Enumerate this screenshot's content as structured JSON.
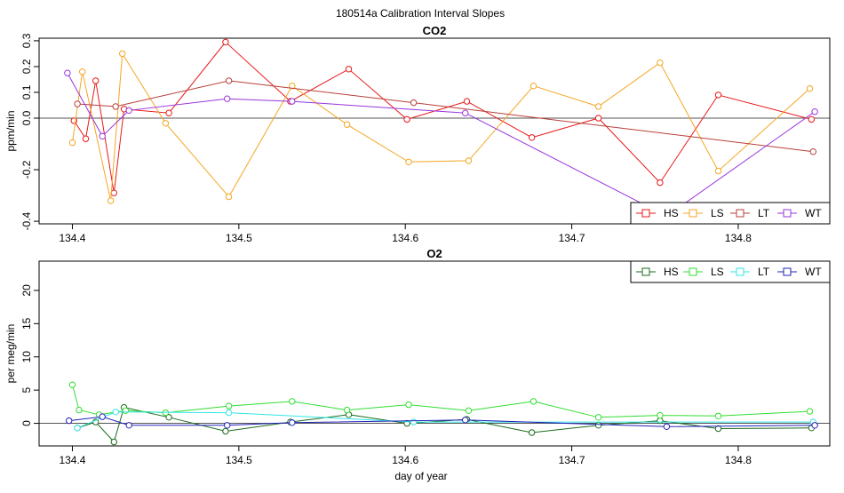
{
  "figure_title": "180514a   Calibration Interval Slopes",
  "x_axis_label": "day of year",
  "chart_data": [
    {
      "type": "line",
      "title": "CO2",
      "xlabel": "",
      "ylabel": "ppm/min",
      "xlim": [
        134.38,
        134.855
      ],
      "ylim": [
        -0.41,
        0.31
      ],
      "xticks": [
        134.4,
        134.5,
        134.6,
        134.7,
        134.8
      ],
      "xtick_labels": [
        "134.4",
        "134.5",
        "134.6",
        "134.7",
        "134.8"
      ],
      "yticks": [
        -0.4,
        -0.2,
        0.0,
        0.1,
        0.2,
        0.3
      ],
      "ytick_labels": [
        "-0.4",
        "-0.2",
        "0.0",
        "0.1",
        "0.2",
        "0.3"
      ],
      "reference_line_y": 0,
      "legend_position": "bottom-right",
      "legend_marker": "square",
      "series": [
        {
          "name": "HS",
          "color": "#e8191a",
          "x": [
            134.401,
            134.408,
            134.414,
            134.425,
            134.431,
            134.458,
            134.492,
            134.531,
            134.566,
            134.601,
            134.637,
            134.676,
            134.716,
            134.753,
            134.788,
            134.844
          ],
          "y": [
            -0.01,
            -0.08,
            0.145,
            -0.29,
            0.035,
            0.02,
            0.295,
            0.065,
            0.19,
            -0.005,
            0.065,
            -0.075,
            0.0,
            -0.25,
            0.09,
            -0.005
          ]
        },
        {
          "name": "LS",
          "color": "#f5a623",
          "x": [
            134.4,
            134.406,
            134.423,
            134.43,
            134.456,
            134.494,
            134.532,
            134.565,
            134.602,
            134.638,
            134.677,
            134.716,
            134.753,
            134.788,
            134.843
          ],
          "y": [
            -0.095,
            0.18,
            -0.32,
            0.25,
            -0.02,
            -0.305,
            0.125,
            -0.025,
            -0.17,
            -0.165,
            0.125,
            0.045,
            0.215,
            -0.205,
            0.115
          ]
        },
        {
          "name": "LT",
          "color": "#b8403a",
          "x": [
            134.403,
            134.426,
            134.494,
            134.605,
            134.845
          ],
          "y": [
            0.055,
            0.045,
            0.145,
            0.06,
            -0.13
          ]
        },
        {
          "name": "WT",
          "color": "#9933dd",
          "x": [
            134.397,
            134.418,
            134.434,
            134.493,
            134.532,
            134.636,
            134.757,
            134.846
          ],
          "y": [
            0.175,
            -0.07,
            0.03,
            0.075,
            0.065,
            0.02,
            -0.38,
            0.025
          ]
        }
      ]
    },
    {
      "type": "line",
      "title": "O2",
      "xlabel": "day of year",
      "ylabel": "per meg/min",
      "xlim": [
        134.38,
        134.855
      ],
      "ylim": [
        -3.4,
        24.4
      ],
      "xticks": [
        134.4,
        134.5,
        134.6,
        134.7,
        134.8
      ],
      "xtick_labels": [
        "134.4",
        "134.5",
        "134.6",
        "134.7",
        "134.8"
      ],
      "yticks": [
        0,
        5,
        10,
        15,
        20
      ],
      "ytick_labels": [
        "0",
        "5",
        "10",
        "15",
        "20"
      ],
      "reference_line_y": 0,
      "legend_position": "top-right",
      "legend_marker": "square",
      "series": [
        {
          "name": "HS",
          "color": "#1a6b1a",
          "x": [
            134.403,
            134.414,
            134.425,
            134.431,
            134.458,
            134.492,
            134.531,
            134.566,
            134.601,
            134.637,
            134.676,
            134.716,
            134.753,
            134.788,
            134.844
          ],
          "y": [
            -0.7,
            0.2,
            -2.8,
            2.4,
            0.9,
            -1.2,
            0.2,
            1.3,
            0.0,
            0.6,
            -1.4,
            -0.3,
            0.4,
            -0.8,
            -0.7
          ]
        },
        {
          "name": "LS",
          "color": "#33dd33",
          "x": [
            134.4,
            134.404,
            134.416,
            134.432,
            134.456,
            134.494,
            134.532,
            134.565,
            134.602,
            134.638,
            134.677,
            134.716,
            134.753,
            134.788,
            134.843
          ],
          "y": [
            5.8,
            2.0,
            1.3,
            1.9,
            1.6,
            2.6,
            3.3,
            2.0,
            2.8,
            1.9,
            3.3,
            0.9,
            1.2,
            1.1,
            1.8
          ]
        },
        {
          "name": "LT",
          "color": "#33e5e5",
          "x": [
            134.403,
            134.426,
            134.494,
            134.605,
            134.845
          ],
          "y": [
            -0.7,
            1.7,
            1.6,
            0.2,
            0.2
          ]
        },
        {
          "name": "WT",
          "color": "#2222bb",
          "x": [
            134.398,
            134.418,
            134.434,
            134.493,
            134.532,
            134.636,
            134.757,
            134.846
          ],
          "y": [
            0.4,
            1.0,
            -0.3,
            -0.3,
            0.1,
            0.5,
            -0.5,
            -0.3
          ]
        }
      ]
    }
  ]
}
